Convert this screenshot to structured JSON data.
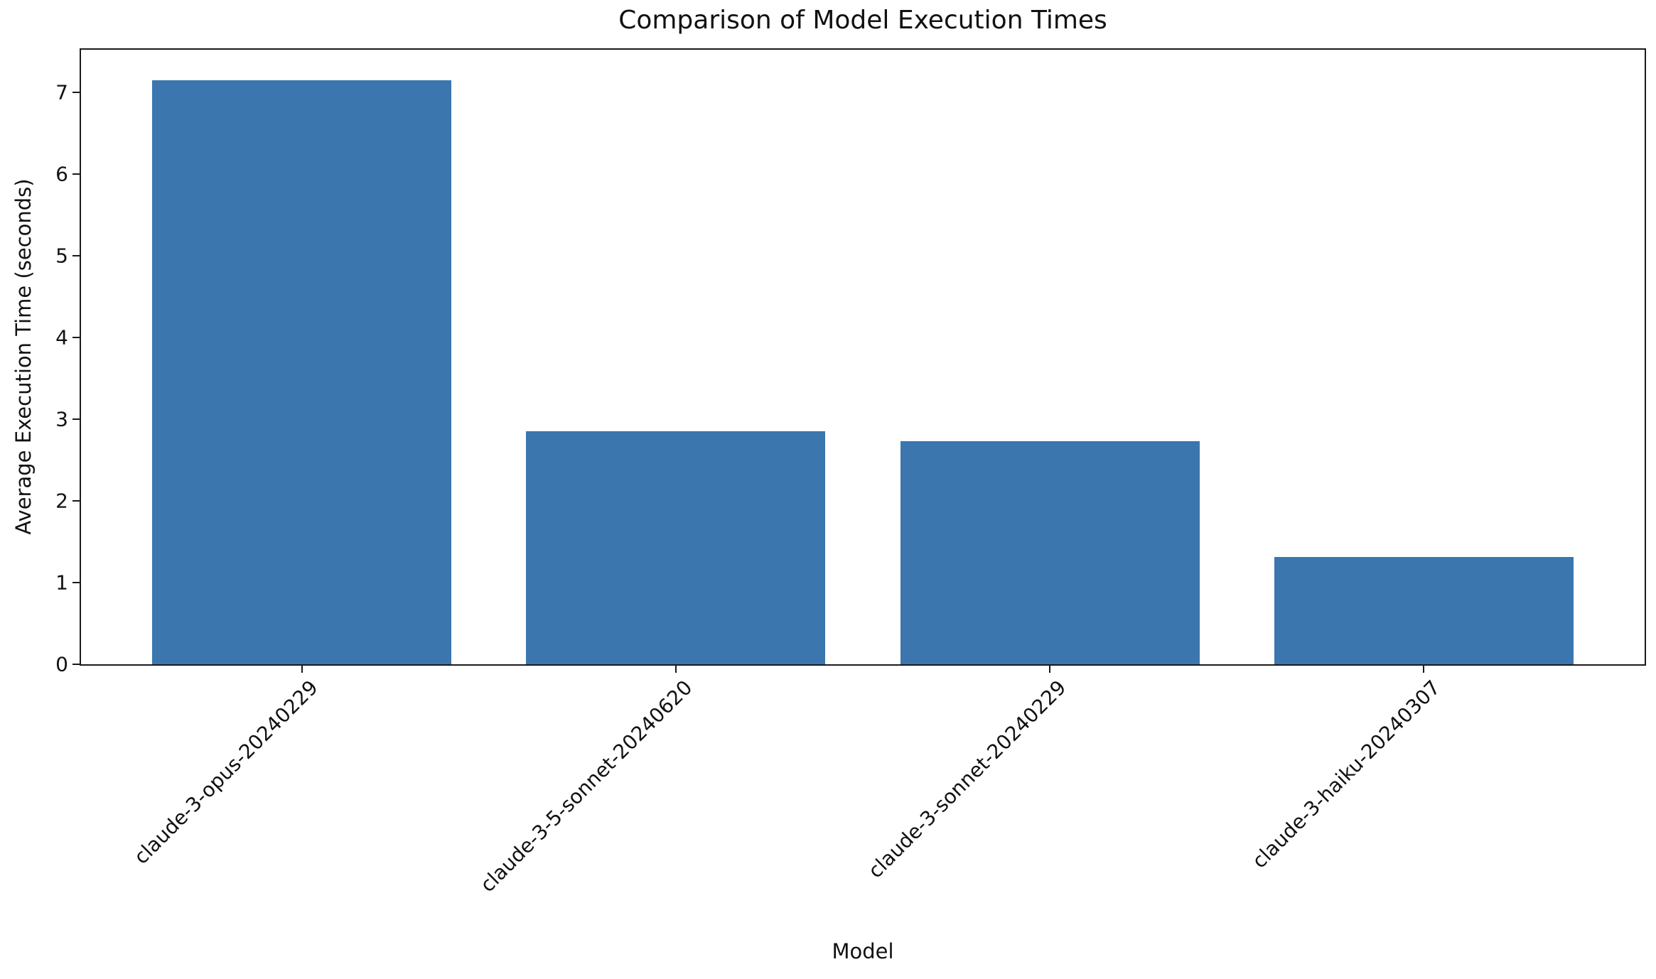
{
  "figure": {
    "background": "#ffffff",
    "spine_color": "#1a1a1a"
  },
  "chart_data": {
    "type": "bar",
    "title": "Comparison of Model Execution Times",
    "xlabel": "Model",
    "ylabel": "Average Execution Time (seconds)",
    "categories": [
      "claude-3-opus-20240229",
      "claude-3-5-sonnet-20240620",
      "claude-3-sonnet-20240229",
      "claude-3-haiku-20240307"
    ],
    "values": [
      7.15,
      2.85,
      2.73,
      1.31
    ],
    "bar_color": "#3b76af",
    "yticks": [
      0,
      1,
      2,
      3,
      4,
      5,
      6,
      7
    ],
    "ylim": [
      0,
      7.52
    ],
    "xlim": [
      -0.59,
      3.59
    ],
    "bar_width": 0.8,
    "grid": false,
    "legend": null,
    "x_tick_rotation": 45
  }
}
